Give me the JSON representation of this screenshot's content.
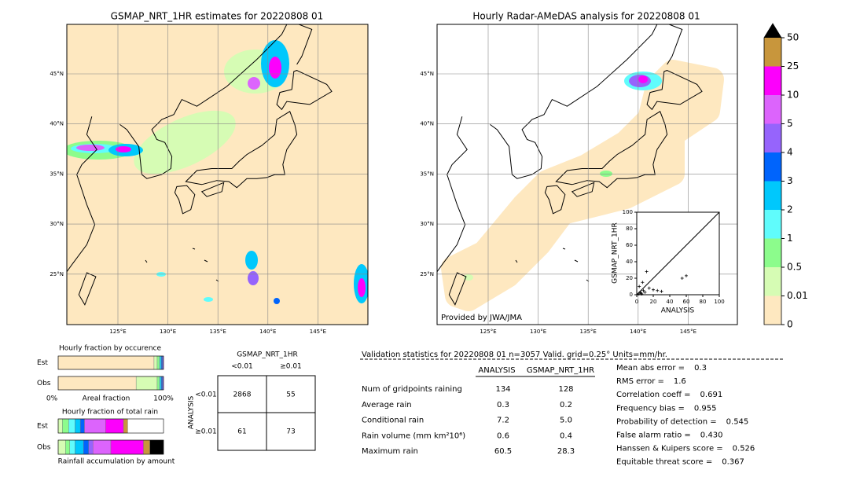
{
  "left_map": {
    "title": "GSMAP_NRT_1HR estimates for 20220808 01",
    "lat_labels": [
      "45°N",
      "40°N",
      "35°N",
      "30°N",
      "25°N"
    ],
    "lon_labels": [
      "125°E",
      "130°E",
      "135°E",
      "140°E",
      "145°E"
    ]
  },
  "right_map": {
    "title": "Hourly Radar-AMeDAS analysis for 20220808 01",
    "lat_labels": [
      "45°N",
      "40°N",
      "35°N",
      "30°N",
      "25°N"
    ],
    "lon_labels": [
      "125°E",
      "130°E",
      "135°E",
      "140°E",
      "145°E"
    ],
    "credit": "Provided by JWA/JMA"
  },
  "scatter": {
    "type": "scatter",
    "xlabel": "ANALYSIS",
    "ylabel": "GSMAP_NRT_1HR",
    "xlim": [
      0,
      100
    ],
    "ylim": [
      0,
      100
    ],
    "xticks": [
      0,
      20,
      40,
      60,
      80,
      100
    ],
    "yticks": [
      0,
      20,
      40,
      60,
      80,
      100
    ],
    "x": [
      2,
      4,
      6,
      5,
      8,
      10,
      3,
      12,
      15,
      20,
      25,
      30,
      7,
      55,
      60
    ],
    "y": [
      1,
      3,
      1,
      2,
      5,
      3,
      10,
      28,
      8,
      6,
      5,
      4,
      15,
      20,
      23
    ],
    "color": "#000000"
  },
  "colorbar": {
    "levels": [
      0,
      0.01,
      0.5,
      1,
      2,
      3,
      4,
      5,
      10,
      25,
      50
    ],
    "colors": [
      "#fee8c0",
      "#d6fcb4",
      "#8cfc8c",
      "#60fcfc",
      "#00c8fc",
      "#0064fc",
      "#9664fc",
      "#dc64fc",
      "#fc00fc",
      "#c8963c"
    ],
    "extend_color": "#000000"
  },
  "occurrence": {
    "title": "Hourly fraction by occurence",
    "axis_left": "0%",
    "axis_label": "Areal fraction",
    "axis_right": "100%",
    "series": [
      {
        "name": "Est",
        "values": [
          91,
          3,
          2,
          1,
          1,
          1,
          1
        ],
        "colors": [
          "#fee8c0",
          "#d6fcb4",
          "#8cfc8c",
          "#60fcfc",
          "#00c8fc",
          "#0064fc",
          "#9664fc"
        ]
      },
      {
        "name": "Obs",
        "values": [
          74,
          20,
          2,
          1,
          1,
          1,
          1
        ],
        "colors": [
          "#fee8c0",
          "#d6fcb4",
          "#8cfc8c",
          "#60fcfc",
          "#00c8fc",
          "#0064fc",
          "#9664fc"
        ]
      }
    ]
  },
  "total_rain": {
    "title": "Hourly fraction of total rain",
    "xlabel": "Rainfall accumulation by amount",
    "series": [
      {
        "name": "Est",
        "values": [
          4,
          6,
          6,
          5,
          4,
          20,
          17,
          4
        ],
        "colors": [
          "#d6fcb4",
          "#8cfc8c",
          "#60fcfc",
          "#00c8fc",
          "#0064fc",
          "#dc64fc",
          "#fc00fc",
          "#c8963c"
        ]
      },
      {
        "name": "Obs",
        "values": [
          7,
          4,
          5,
          8,
          5,
          4,
          17,
          31,
          6,
          13
        ],
        "colors": [
          "#d6fcb4",
          "#8cfc8c",
          "#60fcfc",
          "#00c8fc",
          "#0064fc",
          "#9664fc",
          "#dc64fc",
          "#fc00fc",
          "#c8963c",
          "#000000"
        ]
      }
    ]
  },
  "contingency": {
    "col_title": "GSMAP_NRT_1HR",
    "row_title": "ANALYSIS",
    "col_labels": [
      "<0.01",
      "≥0.01"
    ],
    "row_labels": [
      "<0.01",
      "≥0.01"
    ],
    "cells": [
      [
        "2868",
        "55"
      ],
      [
        "61",
        "73"
      ]
    ]
  },
  "stats": {
    "title": "Validation statistics for 20220808 01  n=3057 Valid. grid=0.25° Units=mm/hr.",
    "columns": [
      "ANALYSIS",
      "GSMAP_NRT_1HR"
    ],
    "rows": [
      {
        "label": "Num of gridpoints raining",
        "values": [
          "134",
          "128"
        ]
      },
      {
        "label": "Average rain",
        "values": [
          "0.3",
          "0.2"
        ]
      },
      {
        "label": "Conditional rain",
        "values": [
          "7.2",
          "5.0"
        ]
      },
      {
        "label": "Rain volume (mm km²10⁶)",
        "values": [
          "0.6",
          "0.4"
        ]
      },
      {
        "label": "Maximum rain",
        "values": [
          "60.5",
          "28.3"
        ]
      }
    ],
    "scores": [
      {
        "label": "Mean abs error =",
        "value": "0.3"
      },
      {
        "label": "RMS error =",
        "value": "1.6"
      },
      {
        "label": "Correlation coeff =",
        "value": "0.691"
      },
      {
        "label": "Frequency bias =",
        "value": "0.955"
      },
      {
        "label": "Probability of detection =",
        "value": "0.545"
      },
      {
        "label": "False alarm ratio =",
        "value": "0.430"
      },
      {
        "label": "Hanssen & Kuipers score =",
        "value": "0.526"
      },
      {
        "label": "Equitable threat score =",
        "value": "0.367"
      }
    ]
  }
}
